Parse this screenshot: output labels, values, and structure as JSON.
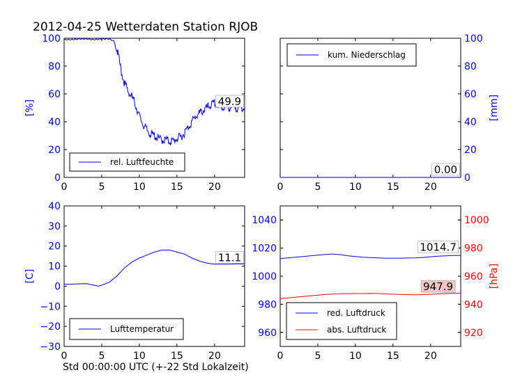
{
  "figure": {
    "title": "2012-04-25 Wetterdaten Station RJOB",
    "xlabel": "Std 00:00:00 UTC (+-22 Std Lokalzeit)"
  },
  "colors": {
    "blue": "#0000ff",
    "red": "#ff0000",
    "pink_box": "#f4c6c6"
  },
  "chart_data": [
    {
      "type": "line",
      "panel": "top-left",
      "ylabel": "[%]",
      "xlim": [
        0,
        24
      ],
      "ylim": [
        0,
        100
      ],
      "xticks": [
        0,
        5,
        10,
        15,
        20
      ],
      "yticks": [
        0,
        20,
        40,
        60,
        80,
        100
      ],
      "ytick_side": "left",
      "ytick_color": "blue",
      "legend": {
        "placement": "lower-left"
      },
      "annotations": [
        {
          "text": "49.9",
          "x": 22,
          "y": 52,
          "box": "white"
        }
      ],
      "series": [
        {
          "name": "rel. Luftfeuchte",
          "color": "blue",
          "x": [
            0,
            1,
            2,
            3,
            4,
            5,
            6,
            6.6,
            7,
            7.3,
            7.6,
            8,
            8.5,
            9,
            9.5,
            10,
            10.5,
            11,
            11.5,
            12,
            12.5,
            13,
            13.5,
            14,
            14.5,
            15,
            15.5,
            16,
            16.5,
            17,
            17.5,
            18,
            18.5,
            19,
            19.5,
            20,
            20.5,
            21,
            21.5,
            22,
            22.5,
            23,
            23.5,
            24
          ],
          "y": [
            99,
            99,
            99.5,
            99.5,
            99,
            99.5,
            99.5,
            98,
            92,
            85,
            76,
            68,
            62,
            58,
            52,
            44,
            38,
            34,
            31,
            30,
            28,
            27,
            27,
            26,
            26,
            28,
            29,
            32,
            36,
            40,
            44,
            46,
            48,
            50,
            52,
            53,
            51,
            50,
            51,
            50,
            51,
            50,
            50,
            49.9
          ]
        }
      ]
    },
    {
      "type": "line",
      "panel": "top-right",
      "ylabel": "[mm]",
      "xlim": [
        0,
        24
      ],
      "ylim": [
        0,
        100
      ],
      "xticks": [
        0,
        5,
        10,
        15,
        20
      ],
      "yticks": [
        0,
        20,
        40,
        60,
        80,
        100
      ],
      "ytick_side": "right",
      "ytick_color": "blue",
      "legend": {
        "placement": "upper-left"
      },
      "annotations": [
        {
          "text": "0.00",
          "x": 22,
          "y": 3,
          "box": "white"
        }
      ],
      "series": [
        {
          "name": "kum. Niederschlag",
          "color": "blue",
          "x": [
            0,
            24
          ],
          "y": [
            0,
            0
          ]
        }
      ]
    },
    {
      "type": "line",
      "panel": "bottom-left",
      "ylabel": "[C]",
      "xlim": [
        0,
        24
      ],
      "ylim": [
        -30,
        40
      ],
      "xticks": [
        0,
        5,
        10,
        15,
        20
      ],
      "yticks": [
        -30,
        -20,
        -10,
        0,
        10,
        20,
        30,
        40
      ],
      "ytick_side": "left",
      "ytick_color": "blue",
      "legend": {
        "placement": "lower-left"
      },
      "annotations": [
        {
          "text": "11.1",
          "x": 22,
          "y": 12.5,
          "box": "white"
        }
      ],
      "series": [
        {
          "name": "Lufttemperatur",
          "color": "blue",
          "x": [
            0,
            1,
            2,
            3,
            4,
            4.5,
            5,
            6,
            7,
            8,
            9,
            10,
            11,
            12,
            12.5,
            13,
            13.5,
            14,
            14.5,
            15,
            16,
            17,
            18,
            19,
            20,
            21,
            22,
            23,
            24
          ],
          "y": [
            1,
            1,
            1.2,
            1.3,
            0.5,
            0,
            0.5,
            2,
            5,
            9,
            12,
            14,
            15.5,
            17,
            17.5,
            18,
            18,
            18,
            17.5,
            17,
            16,
            14,
            12.5,
            11.5,
            11,
            11,
            11,
            11.2,
            11.1
          ]
        }
      ]
    },
    {
      "type": "line",
      "panel": "bottom-right",
      "ylabel": "[hPa]",
      "xlim": [
        0,
        24
      ],
      "ylim_left": [
        950,
        1050
      ],
      "ylim_right": [
        910,
        1010
      ],
      "xticks": [
        0,
        5,
        10,
        15,
        20
      ],
      "yticks_left": [
        960,
        980,
        1000,
        1020,
        1040
      ],
      "yticks_right": [
        920,
        940,
        960,
        980,
        1000
      ],
      "legend": {
        "placement": "lower-left"
      },
      "annotations": [
        {
          "text": "1014.7",
          "x": 21,
          "y": 1018,
          "axis": "left",
          "box": "white"
        },
        {
          "text": "947.9",
          "x": 21,
          "y": 950,
          "axis": "right",
          "box": "pink"
        }
      ],
      "series": [
        {
          "name": "red. Luftdruck",
          "color": "blue",
          "axis": "left",
          "x": [
            0,
            1,
            2,
            3,
            4,
            5,
            6,
            7,
            8,
            9,
            10,
            11,
            12,
            13,
            14,
            15,
            16,
            17,
            18,
            19,
            20,
            21,
            22,
            23,
            24
          ],
          "y": [
            1012.5,
            1013,
            1013.5,
            1014,
            1014.5,
            1015,
            1015.5,
            1015.8,
            1015.3,
            1014.5,
            1014,
            1013.5,
            1013.2,
            1013,
            1012.8,
            1012.8,
            1012.8,
            1012.9,
            1013,
            1013.3,
            1013.8,
            1014.2,
            1014.5,
            1014.7,
            1014.7
          ]
        },
        {
          "name": "abs. Luftdruck",
          "color": "red",
          "axis": "right",
          "x": [
            0,
            1,
            2,
            3,
            4,
            5,
            6,
            7,
            8,
            9,
            10,
            11,
            12,
            13,
            14,
            15,
            16,
            17,
            18,
            19,
            20,
            21,
            22,
            23,
            24
          ],
          "y": [
            944,
            944.5,
            945,
            945.5,
            946,
            946.5,
            947,
            947.3,
            947.5,
            947.5,
            947.6,
            947.6,
            947.7,
            947.6,
            947.4,
            947.2,
            947,
            946.9,
            946.8,
            946.9,
            947.1,
            947.4,
            947.6,
            947.8,
            947.9
          ]
        }
      ]
    }
  ]
}
